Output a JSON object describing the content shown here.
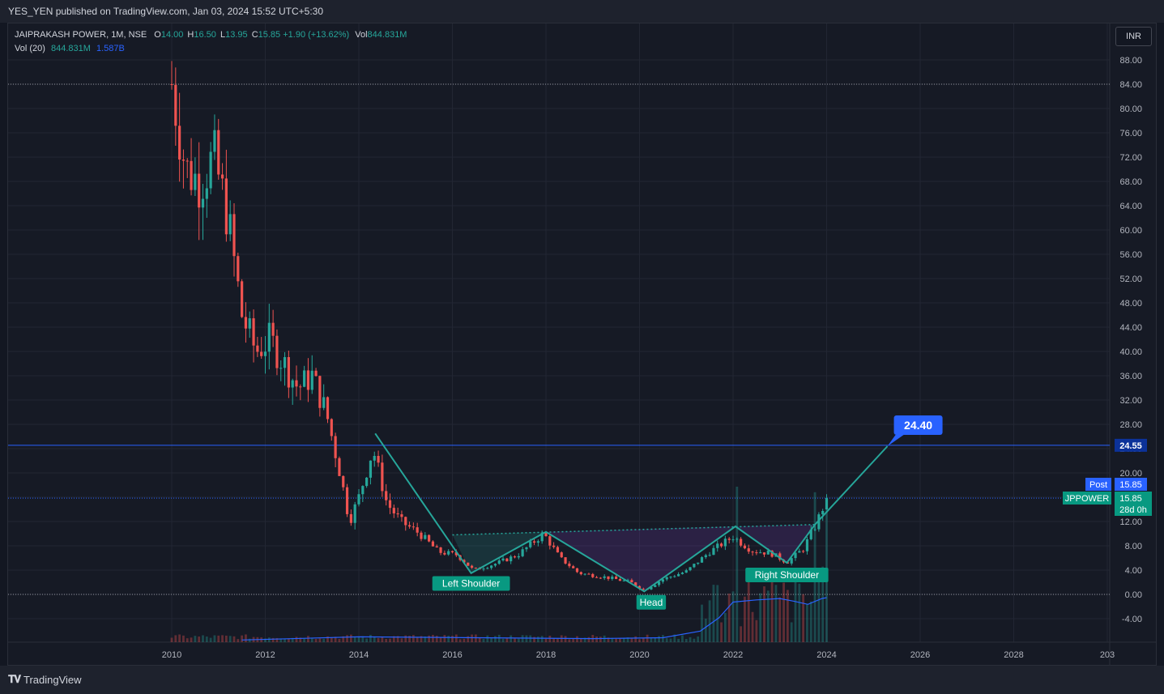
{
  "header": {
    "publisher_line": "YES_YEN published on TradingView.com, Jan 03, 2024 15:52 UTC+5:30"
  },
  "legend": {
    "symbol": "JAIPRAKASH POWER, 1M, NSE",
    "open_label": "O",
    "open": "14.00",
    "high_label": "H",
    "high": "16.50",
    "low_label": "L",
    "low": "13.95",
    "close_label": "C",
    "close": "15.85",
    "change": "+1.90 (+13.62%)",
    "vol_label": "Vol",
    "vol": "844.831M",
    "vol_ma_label": "Vol (20)",
    "vol_ma_value": "844.831M",
    "vol_ma_avg": "1.587B"
  },
  "currency_button": "INR",
  "footer": {
    "brand": "TradingView",
    "brand_icon": "tradingview-logo-icon"
  },
  "colors": {
    "up": "#26a69a",
    "down": "#ef5350",
    "pattern": "#26a69a",
    "accent": "#2962ff",
    "volume_ma": "#2962ff"
  },
  "chart_data": {
    "type": "candlestick",
    "timeframe": "1M",
    "y_axis": {
      "ticks": [
        "88.00",
        "84.00",
        "80.00",
        "76.00",
        "72.00",
        "68.00",
        "64.00",
        "60.00",
        "56.00",
        "52.00",
        "48.00",
        "44.00",
        "40.00",
        "36.00",
        "32.00",
        "28.00",
        "24.00",
        "20.00",
        "16.00",
        "12.00",
        "8.00",
        "4.00",
        "0.00",
        "-4.00"
      ],
      "range": [
        -8,
        92
      ]
    },
    "x_axis": {
      "ticks": [
        "2010",
        "2012",
        "2014",
        "2016",
        "2018",
        "2020",
        "2022",
        "2024",
        "2026",
        "2028",
        "203"
      ],
      "range": [
        2009.55,
        2030.7
      ]
    },
    "grid": true,
    "price_levels": {
      "ath_dotted": 84.0,
      "resistance_line": 24.55,
      "last_price_dotted": 15.85,
      "zero_dotted": 0.0
    },
    "price_labels": [
      {
        "name": "resistance",
        "value": 24.55,
        "text": "24.55"
      },
      {
        "name": "post",
        "tag": "Post",
        "text": "15.85"
      },
      {
        "name": "last",
        "tag": "JPPOWER",
        "text": "15.85",
        "countdown": "28d 0h"
      }
    ],
    "target": {
      "text": "24.40",
      "value": 24.4,
      "x": 2025.3
    },
    "pattern": {
      "name": "inverse head and shoulders",
      "zigzag": [
        [
          2014.35,
          26.5
        ],
        [
          2016.4,
          3.5
        ],
        [
          2018.0,
          10.3
        ],
        [
          2020.1,
          0.5
        ],
        [
          2022.05,
          11.2
        ],
        [
          2023.15,
          5.2
        ],
        [
          2023.75,
          11.5
        ],
        [
          2025.3,
          24.4
        ]
      ],
      "neckline": [
        [
          2016.0,
          9.8
        ],
        [
          2023.75,
          11.5
        ]
      ],
      "labels": [
        {
          "text": "Left Shoulder",
          "x": 2016.4,
          "y": 1.8
        },
        {
          "text": "Head",
          "x": 2020.25,
          "y": -1.3
        },
        {
          "text": "Right Shoulder",
          "x": 2023.15,
          "y": 3.2
        }
      ]
    },
    "ohlc_anchors": [
      [
        2010.0,
        84.0
      ],
      [
        2010.3,
        70
      ],
      [
        2010.6,
        68
      ],
      [
        2010.9,
        72
      ],
      [
        2011.2,
        62
      ],
      [
        2011.5,
        46
      ],
      [
        2011.8,
        40
      ],
      [
        2012.1,
        42
      ],
      [
        2012.4,
        38
      ],
      [
        2012.7,
        34
      ],
      [
        2013.0,
        36
      ],
      [
        2013.3,
        30
      ],
      [
        2013.6,
        20
      ],
      [
        2013.8,
        12
      ],
      [
        2014.0,
        16
      ],
      [
        2014.3,
        24
      ],
      [
        2014.6,
        15
      ],
      [
        2014.9,
        12
      ],
      [
        2015.3,
        10
      ],
      [
        2015.7,
        7
      ],
      [
        2016.1,
        6.5
      ],
      [
        2016.45,
        4.0
      ],
      [
        2016.9,
        5.0
      ],
      [
        2017.4,
        6.5
      ],
      [
        2017.95,
        10.0
      ],
      [
        2018.3,
        6.0
      ],
      [
        2018.7,
        3.5
      ],
      [
        2019.3,
        2.8
      ],
      [
        2019.8,
        2.0
      ],
      [
        2020.1,
        0.8
      ],
      [
        2020.5,
        2.5
      ],
      [
        2021.0,
        3.8
      ],
      [
        2021.5,
        7.0
      ],
      [
        2022.0,
        9.5
      ],
      [
        2022.4,
        7.2
      ],
      [
        2022.8,
        6.8
      ],
      [
        2023.15,
        5.3
      ],
      [
        2023.5,
        7.5
      ],
      [
        2023.8,
        12.0
      ],
      [
        2024.0,
        15.85
      ]
    ],
    "volume_ma_anchors": [
      [
        2011.5,
        0.05
      ],
      [
        2014.0,
        0.12
      ],
      [
        2016.5,
        0.1
      ],
      [
        2019.0,
        0.08
      ],
      [
        2020.5,
        0.1
      ],
      [
        2021.3,
        0.25
      ],
      [
        2021.7,
        0.55
      ],
      [
        2022.0,
        0.9
      ],
      [
        2022.5,
        0.95
      ],
      [
        2023.0,
        0.98
      ],
      [
        2023.3,
        0.92
      ],
      [
        2023.6,
        0.85
      ],
      [
        2023.9,
        0.98
      ],
      [
        2024.0,
        1.0
      ]
    ]
  }
}
